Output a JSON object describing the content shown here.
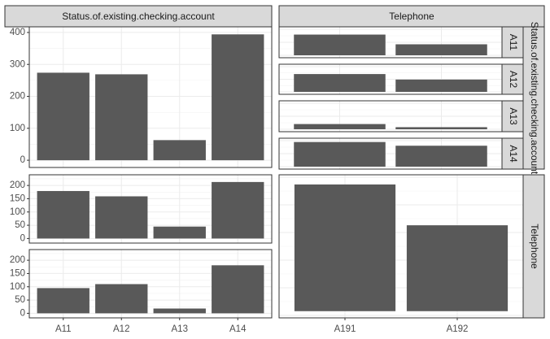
{
  "chart_data": {
    "type": "bar",
    "layout": "generalized pairs plot (ggpairs-style)",
    "variables": [
      "Status.of.existing.checking.account",
      "Telephone"
    ],
    "strips": {
      "top_left": "Status.of.existing.checking.account",
      "top_right": "Telephone",
      "right_top": "Status.of.existing.checking.account",
      "right_bottom": "Telephone"
    },
    "status_levels": [
      "A11",
      "A12",
      "A13",
      "A14"
    ],
    "telephone_levels": [
      "A191",
      "A192"
    ],
    "status_marginal": {
      "categories": [
        "A11",
        "A12",
        "A13",
        "A14"
      ],
      "values": [
        274,
        269,
        63,
        394
      ],
      "ylim": [
        0,
        410
      ],
      "yticks": [
        0,
        100,
        200,
        300,
        400
      ]
    },
    "telephone_marginal": {
      "categories": [
        "A191",
        "A192"
      ],
      "values": [
        596,
        404
      ],
      "ylim": [
        0,
        630
      ]
    },
    "telephone_by_status": {
      "categories": [
        "A11",
        "A12",
        "A13",
        "A14"
      ],
      "rows": [
        {
          "level": "A191",
          "values": [
            179,
            159,
            45,
            213
          ],
          "ylim": [
            0,
            225
          ],
          "yticks": [
            0,
            50,
            100,
            150,
            200
          ]
        },
        {
          "level": "A192",
          "values": [
            95,
            110,
            18,
            181
          ],
          "ylim": [
            0,
            225
          ],
          "yticks": [
            0,
            50,
            100,
            150,
            200
          ]
        }
      ]
    },
    "status_by_telephone": {
      "categories": [
        "A191",
        "A192"
      ],
      "panels": [
        {
          "level": "A11",
          "values": [
            179,
            95
          ],
          "ylim": [
            0,
            225
          ]
        },
        {
          "level": "A12",
          "values": [
            159,
            110
          ],
          "ylim": [
            0,
            225
          ]
        },
        {
          "level": "A13",
          "values": [
            45,
            18
          ],
          "ylim": [
            0,
            225
          ]
        },
        {
          "level": "A14",
          "values": [
            213,
            181
          ],
          "ylim": [
            0,
            225
          ]
        }
      ]
    },
    "bar_color": "#595959",
    "grid": true
  }
}
